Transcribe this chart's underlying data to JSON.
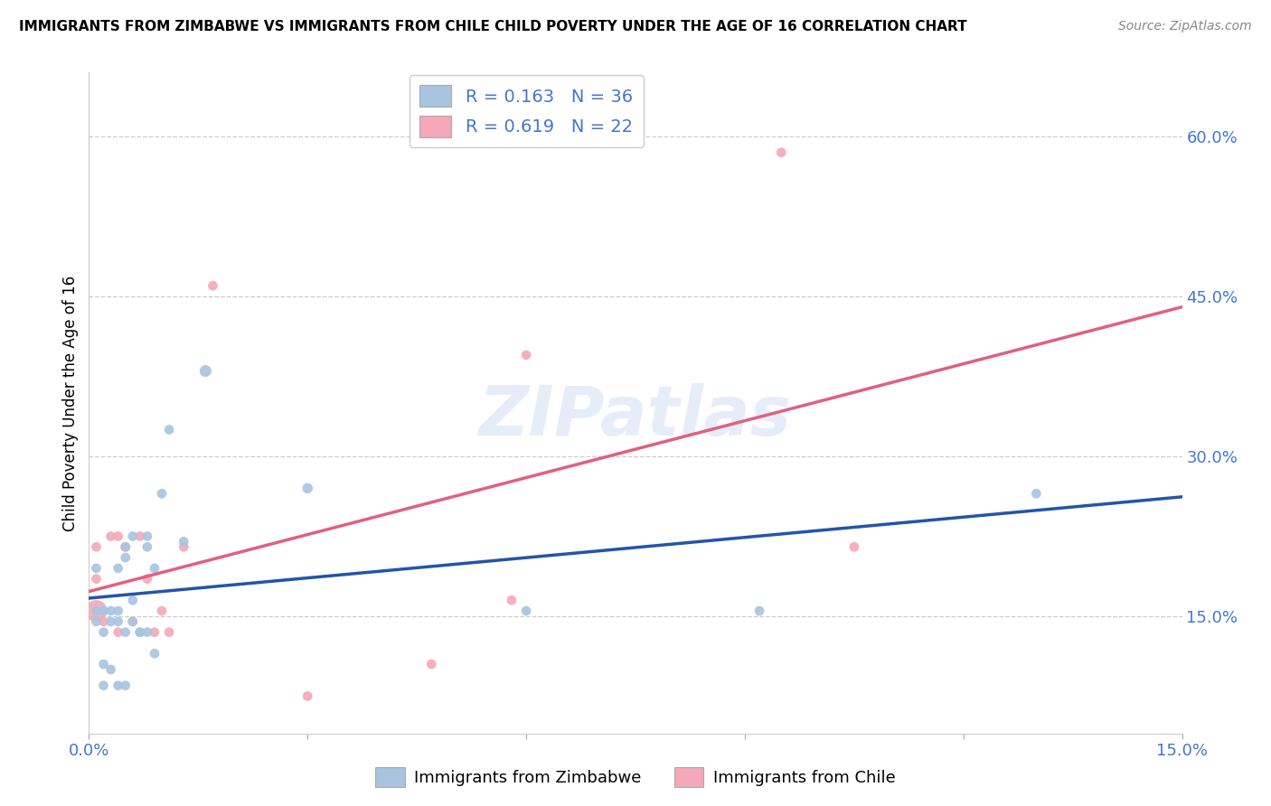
{
  "title": "IMMIGRANTS FROM ZIMBABWE VS IMMIGRANTS FROM CHILE CHILD POVERTY UNDER THE AGE OF 16 CORRELATION CHART",
  "source": "Source: ZipAtlas.com",
  "ylabel": "Child Poverty Under the Age of 16",
  "xlim": [
    0.0,
    0.15
  ],
  "ylim": [
    0.04,
    0.66
  ],
  "ytick_labels_right": [
    "15.0%",
    "30.0%",
    "45.0%",
    "60.0%"
  ],
  "ytick_vals_right": [
    0.15,
    0.3,
    0.45,
    0.6
  ],
  "grid_vals": [
    0.15,
    0.3,
    0.45,
    0.6
  ],
  "zimbabwe_color": "#a8c4e0",
  "chile_color": "#f4a8b8",
  "zimbabwe_line_color": "#2255aa",
  "chile_line_color": "#e06080",
  "legend_R_zimbabwe": "R = 0.163",
  "legend_N_zimbabwe": "N = 36",
  "legend_R_chile": "R = 0.619",
  "legend_N_chile": "N = 22",
  "watermark": "ZIPatlas",
  "zimbabwe_x": [
    0.001,
    0.001,
    0.001,
    0.002,
    0.002,
    0.002,
    0.002,
    0.003,
    0.003,
    0.003,
    0.004,
    0.004,
    0.004,
    0.004,
    0.005,
    0.005,
    0.005,
    0.005,
    0.006,
    0.006,
    0.006,
    0.007,
    0.007,
    0.008,
    0.008,
    0.008,
    0.009,
    0.009,
    0.01,
    0.011,
    0.013,
    0.016,
    0.03,
    0.06,
    0.092,
    0.13
  ],
  "zimbabwe_y": [
    0.145,
    0.155,
    0.195,
    0.085,
    0.155,
    0.135,
    0.105,
    0.145,
    0.1,
    0.155,
    0.145,
    0.195,
    0.155,
    0.085,
    0.215,
    0.205,
    0.135,
    0.085,
    0.225,
    0.165,
    0.145,
    0.135,
    0.135,
    0.225,
    0.215,
    0.135,
    0.195,
    0.115,
    0.265,
    0.325,
    0.22,
    0.38,
    0.27,
    0.155,
    0.155,
    0.265
  ],
  "zimbabwe_size": [
    60,
    60,
    60,
    60,
    60,
    60,
    60,
    60,
    60,
    60,
    60,
    60,
    60,
    60,
    60,
    60,
    60,
    60,
    60,
    60,
    60,
    60,
    60,
    60,
    60,
    60,
    60,
    60,
    60,
    60,
    60,
    90,
    70,
    60,
    60,
    60
  ],
  "chile_x": [
    0.001,
    0.001,
    0.001,
    0.002,
    0.003,
    0.004,
    0.004,
    0.005,
    0.006,
    0.007,
    0.008,
    0.009,
    0.01,
    0.011,
    0.013,
    0.017,
    0.03,
    0.047,
    0.058,
    0.06,
    0.095,
    0.105
  ],
  "chile_y": [
    0.155,
    0.185,
    0.215,
    0.145,
    0.225,
    0.135,
    0.225,
    0.215,
    0.145,
    0.225,
    0.185,
    0.135,
    0.155,
    0.135,
    0.215,
    0.46,
    0.075,
    0.105,
    0.165,
    0.395,
    0.585,
    0.215
  ],
  "chile_size": [
    300,
    60,
    60,
    60,
    60,
    60,
    60,
    60,
    60,
    60,
    60,
    60,
    60,
    60,
    60,
    60,
    60,
    60,
    60,
    60,
    60,
    60
  ]
}
